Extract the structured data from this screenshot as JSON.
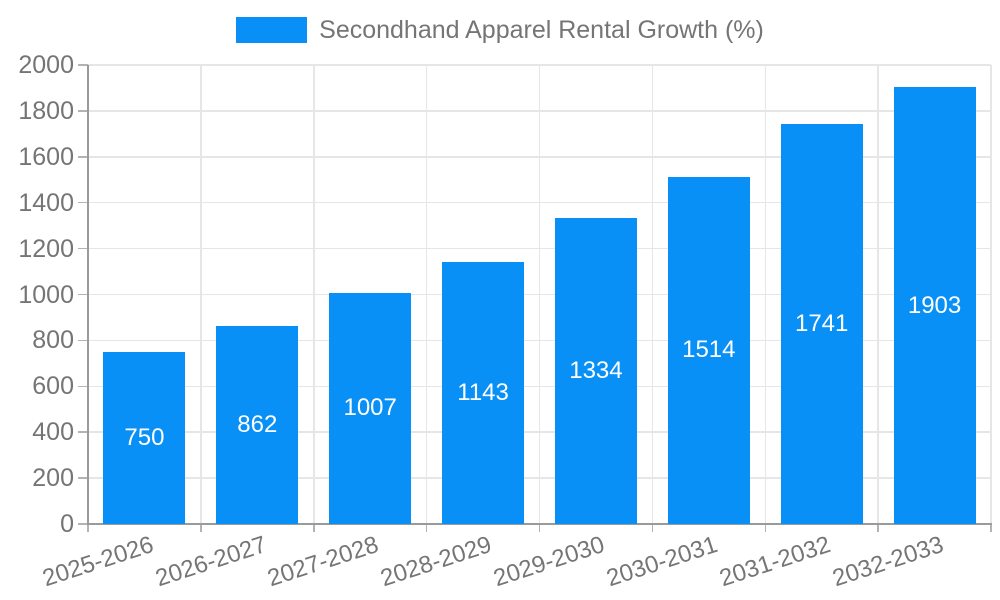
{
  "legend": {
    "label": "Secondhand Apparel Rental Growth (%)"
  },
  "chart_data": {
    "type": "bar",
    "title": "",
    "xlabel": "",
    "ylabel": "",
    "legend_entries": [
      "Secondhand Apparel Rental Growth (%)"
    ],
    "legend_position": "top-center",
    "categories": [
      "2025-2026",
      "2026-2027",
      "2027-2028",
      "2028-2029",
      "2029-2030",
      "2030-2031",
      "2031-2032",
      "2032-2033"
    ],
    "values": [
      750,
      862,
      1007,
      1143,
      1334,
      1514,
      1741,
      1903
    ],
    "ylim": [
      0,
      2000
    ],
    "yticks": [
      0,
      200,
      400,
      600,
      800,
      1000,
      1200,
      1400,
      1600,
      1800,
      2000
    ],
    "grid": true,
    "bar_labels_inside": true,
    "colors": {
      "bar": "#0990f6",
      "bar_label": "#ffffff",
      "axis": "#9a9a9a",
      "tick": "#b3b3b3",
      "grid": "#e6e6e6",
      "text": "#757575",
      "background": "#ffffff"
    }
  }
}
